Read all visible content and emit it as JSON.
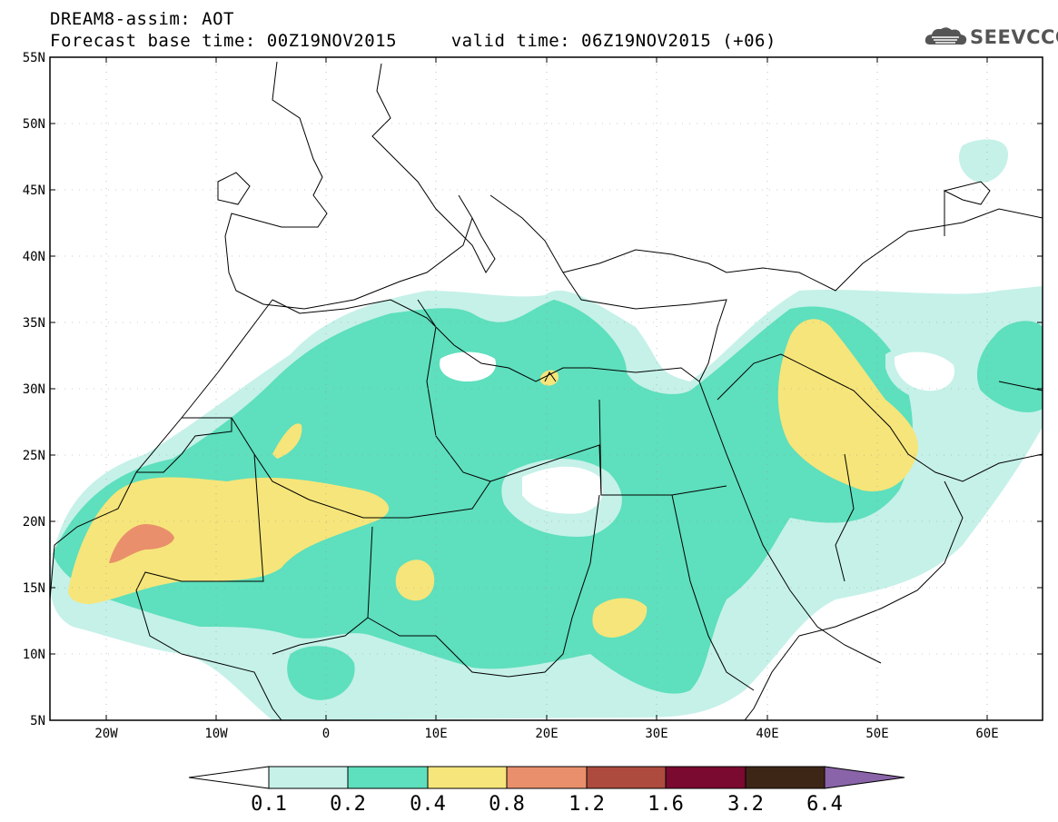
{
  "header": {
    "line1": "DREAM8-assim: AOT",
    "line2": "Forecast base time: 00Z19NOV2015     valid time: 06Z19NOV2015 (+06)",
    "logo_text": "SEEVCCC"
  },
  "map": {
    "lon_range": [
      -25,
      65
    ],
    "lat_range": [
      5,
      55
    ],
    "lat_labels": [
      "55N",
      "50N",
      "45N",
      "40N",
      "35N",
      "30N",
      "25N",
      "20N",
      "15N",
      "10N",
      "5N"
    ],
    "lon_labels": [
      "20W",
      "10W",
      "0",
      "10E",
      "20E",
      "30E",
      "40E",
      "50E",
      "60E"
    ],
    "field": "AOT"
  },
  "colorbar": {
    "labels": [
      "0.1",
      "0.2",
      "0.4",
      "0.8",
      "1.2",
      "1.6",
      "3.2",
      "6.4"
    ],
    "colors": [
      "#ffffff",
      "#c5f1e8",
      "#5edfbd",
      "#f6e57a",
      "#e98f6c",
      "#ad4b3e",
      "#7a0a2f",
      "#3e2616",
      "#8a64a8"
    ]
  }
}
